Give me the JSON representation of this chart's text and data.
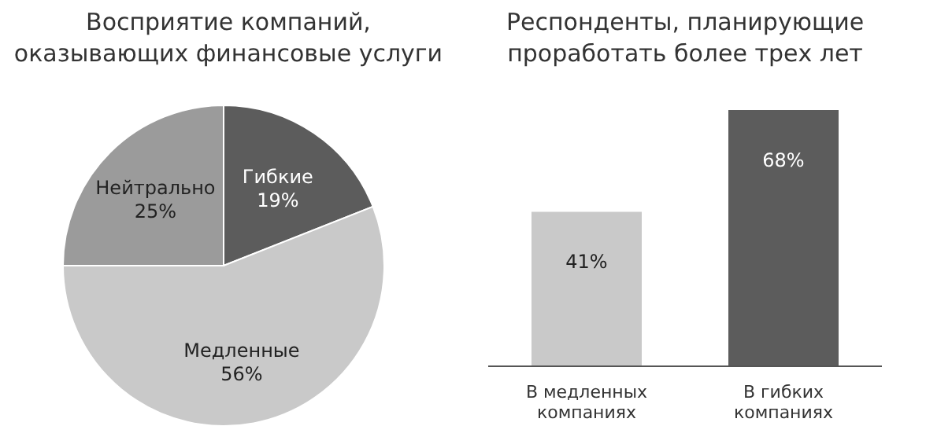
{
  "chart_data": [
    {
      "type": "pie",
      "title": "Восприятие компаний, оказывающих финансовые услуги",
      "categories": [
        "Гибкие",
        "Медленные",
        "Нейтрально"
      ],
      "values": [
        19,
        56,
        25
      ],
      "colors": [
        "#5c5c5c",
        "#c9c9c9",
        "#9b9b9b"
      ],
      "value_labels": [
        "19%",
        "56%",
        "25%"
      ]
    },
    {
      "type": "bar",
      "title": "Респонденты, планирующие проработать более трех лет",
      "categories": [
        "В медленных компаниях",
        "В гибких компаниях"
      ],
      "values": [
        41,
        68
      ],
      "colors": [
        "#c9c9c9",
        "#5c5c5c"
      ],
      "value_labels": [
        "41%",
        "68%"
      ]
    }
  ]
}
